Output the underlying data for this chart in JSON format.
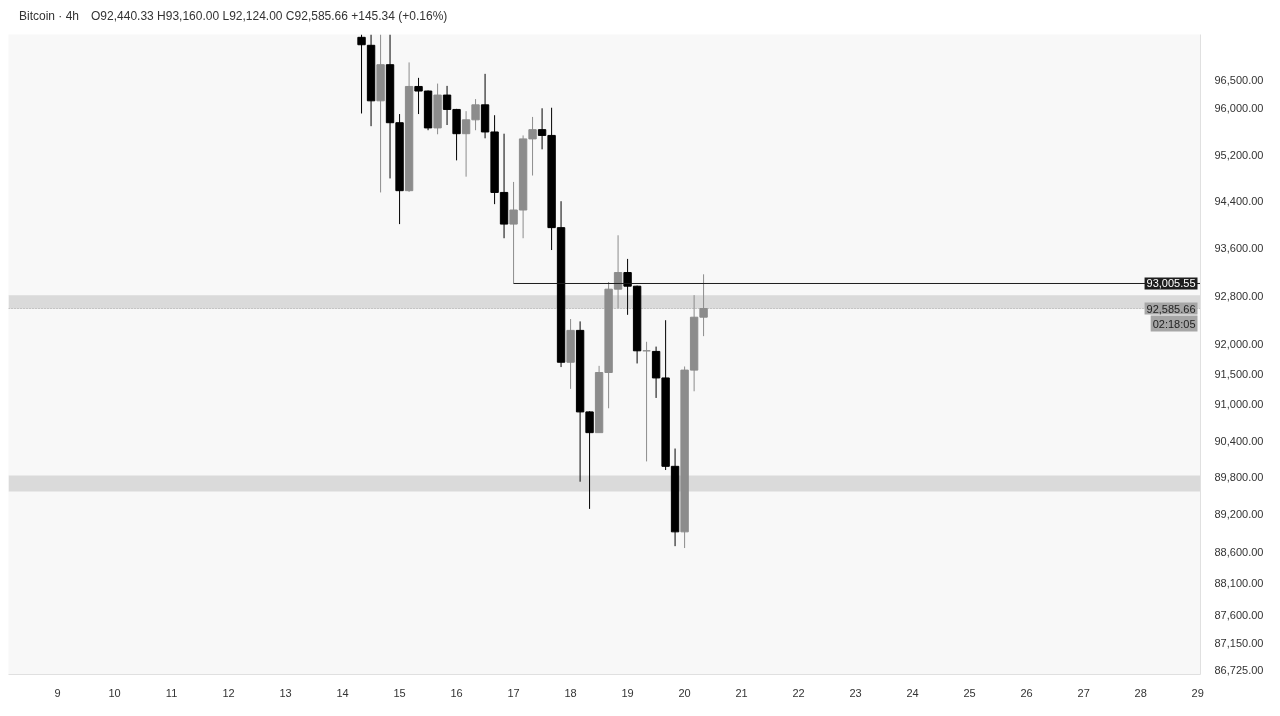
{
  "chart_data": {
    "type": "candlestick",
    "title": "Bitcoin · 4h",
    "subtitle": "O92,440.33 H93,160.00 L92,124.00 C92,585.66 +145.34 (+0.16%)",
    "x": [
      14.333,
      14.5,
      14.667,
      14.833,
      15,
      15.167,
      15.333,
      15.5,
      15.667,
      15.833,
      16,
      16.167,
      16.333,
      16.5,
      16.667,
      16.833,
      17,
      17.167,
      17.333,
      17.5,
      17.667,
      17.833,
      18,
      18.167,
      18.333,
      18.5,
      18.667,
      18.833,
      19,
      19.167,
      19.333,
      19.5,
      19.667,
      19.833,
      20,
      20.167,
      20.333
    ],
    "ohlc": [
      [
        97240,
        97290,
        95910,
        97110
      ],
      [
        97100,
        97290,
        95690,
        96130
      ],
      [
        96130,
        97290,
        94550,
        96760
      ],
      [
        96760,
        97290,
        94790,
        95750
      ],
      [
        95750,
        95900,
        94010,
        94580
      ],
      [
        94580,
        96800,
        94560,
        96380
      ],
      [
        96380,
        96530,
        95900,
        96300
      ],
      [
        96300,
        96310,
        95620,
        95660
      ],
      [
        95660,
        96430,
        95550,
        96230
      ],
      [
        96230,
        96390,
        95710,
        95980
      ],
      [
        95980,
        95990,
        95100,
        95560
      ],
      [
        95560,
        95950,
        94820,
        95800
      ],
      [
        95800,
        96160,
        95620,
        96060
      ],
      [
        96060,
        96600,
        95480,
        95590
      ],
      [
        95590,
        95880,
        94350,
        94550
      ],
      [
        94550,
        95560,
        93770,
        94010
      ],
      [
        94010,
        94730,
        93005.55,
        94250
      ],
      [
        94250,
        95530,
        93770,
        95470
      ],
      [
        95470,
        95850,
        94840,
        95630
      ],
      [
        95630,
        96000,
        95290,
        95530
      ],
      [
        95530,
        96010,
        93570,
        93950
      ],
      [
        93950,
        94400,
        91610,
        91690
      ],
      [
        91690,
        92410,
        91250,
        92220
      ],
      [
        92220,
        92370,
        89730,
        90870
      ],
      [
        90870,
        90880,
        89290,
        90530
      ],
      [
        90530,
        91630,
        90530,
        91520
      ],
      [
        91520,
        93030,
        90930,
        92910
      ],
      [
        92910,
        93820,
        92590,
        93190
      ],
      [
        93190,
        93420,
        92480,
        92960
      ],
      [
        92960,
        92970,
        91670,
        91880
      ],
      [
        91880,
        92030,
        90060,
        91880
      ],
      [
        91870,
        91950,
        91100,
        91430
      ],
      [
        91430,
        92390,
        89920,
        89980
      ],
      [
        89980,
        90270,
        88690,
        88920
      ],
      [
        88920,
        91620,
        88660,
        91560
      ],
      [
        91560,
        92810,
        91210,
        92440
      ],
      [
        92440.33,
        93160.0,
        92124.0,
        92585.66
      ]
    ],
    "colors": [
      "#000000",
      "#000000",
      "#8c8c8c",
      "#000000",
      "#000000",
      "#8c8c8c",
      "#000000",
      "#000000",
      "#8c8c8c",
      "#000000",
      "#000000",
      "#8c8c8c",
      "#8c8c8c",
      "#000000",
      "#000000",
      "#000000",
      "#8c8c8c",
      "#8c8c8c",
      "#8c8c8c",
      "#000000",
      "#000000",
      "#000000",
      "#8c8c8c",
      "#000000",
      "#000000",
      "#8c8c8c",
      "#8c8c8c",
      "#8c8c8c",
      "#000000",
      "#000000",
      "#8c8c8c",
      "#000000",
      "#000000",
      "#000000",
      "#8c8c8c",
      "#8c8c8c",
      "#8c8c8c"
    ],
    "series": [
      {
        "type": "line",
        "x": [
          17,
          29.05
        ],
        "values": [
          93005.55,
          93005.55
        ],
        "value_labels": [
          null,
          "93,005.55"
        ],
        "color": "#1e1e1e"
      }
    ],
    "xlim": [
      8.14,
      29.05
    ],
    "xticks": [
      9,
      10,
      11,
      12,
      13,
      14,
      15,
      16,
      17,
      18,
      19,
      20,
      21,
      22,
      23,
      24,
      25,
      26,
      27,
      28,
      29
    ],
    "ylim": [
      86655,
      97290
    ],
    "log": true,
    "yticks": [
      {
        "value": 86725,
        "label": "86,725.00"
      },
      {
        "value": 87150,
        "label": "87,150.00"
      },
      {
        "value": 87600,
        "label": "87,600.00"
      },
      {
        "value": 88100,
        "label": "88,100.00"
      },
      {
        "value": 88600,
        "label": "88,600.00"
      },
      {
        "value": 89200,
        "label": "89,200.00"
      },
      {
        "value": 89800,
        "label": "89,800.00"
      },
      {
        "value": 90400,
        "label": "90,400.00"
      },
      {
        "value": 91000,
        "label": "91,000.00"
      },
      {
        "value": 91500,
        "label": "91,500.00"
      },
      {
        "value": 92000,
        "label": "92,000.00"
      },
      {
        "value": 92800,
        "label": "92,800.00"
      },
      {
        "value": 93600,
        "label": "93,600.00"
      },
      {
        "value": 94400,
        "label": "94,400.00"
      },
      {
        "value": 95200,
        "label": "95,200.00"
      },
      {
        "value": 96000,
        "label": "96,000.00"
      },
      {
        "value": 96500,
        "label": "96,500.00"
      }
    ],
    "bands": [
      {
        "axis": "y",
        "from": 92580,
        "to": 92810,
        "color": "#d6d6d6"
      },
      {
        "axis": "y",
        "from": 89570,
        "to": 89830,
        "color": "#d6d6d6"
      }
    ],
    "ref_lines": [
      {
        "axis": "y",
        "value": 92585.66,
        "label": "92,585.66",
        "line_style": "dotted",
        "color": "#a6a6a6"
      }
    ],
    "annotations": [
      "02:18:05"
    ]
  }
}
